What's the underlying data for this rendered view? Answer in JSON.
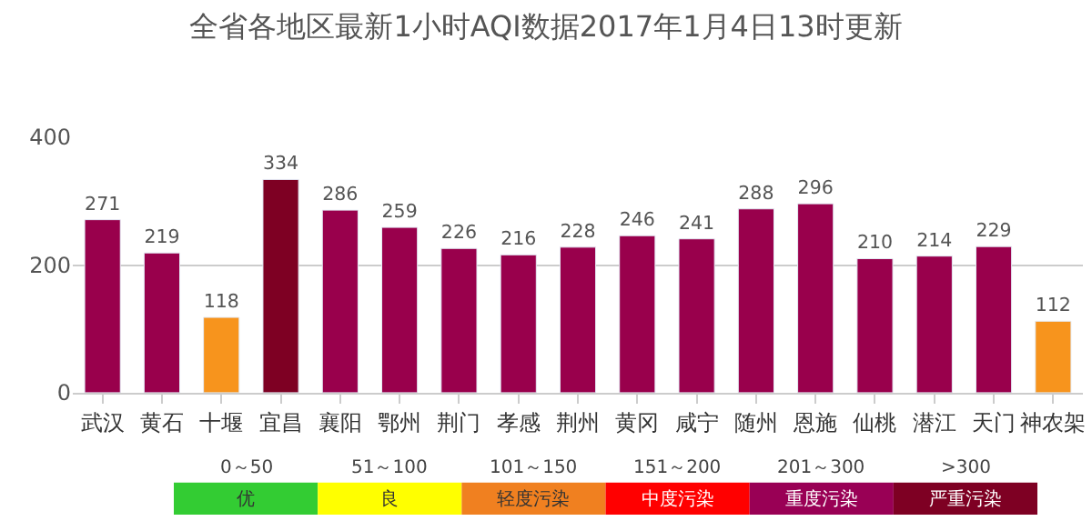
{
  "chart_data": [
    {
      "type": "bar",
      "title": "全省各地区最新1小时AQI数据2017年1月4日13时更新",
      "categories": [
        "武汉",
        "黄石",
        "十堰",
        "宜昌",
        "襄阳",
        "鄂州",
        "荆门",
        "孝感",
        "荆州",
        "黄冈",
        "咸宁",
        "随州",
        "恩施",
        "仙桃",
        "潜江",
        "天门",
        "神农架"
      ],
      "values": [
        271,
        219,
        118,
        334,
        286,
        259,
        226,
        216,
        228,
        246,
        241,
        288,
        296,
        210,
        214,
        229,
        112
      ],
      "colors": [
        "#99004c",
        "#99004c",
        "#f7941d",
        "#7e0023",
        "#99004c",
        "#99004c",
        "#99004c",
        "#99004c",
        "#99004c",
        "#99004c",
        "#99004c",
        "#99004c",
        "#99004c",
        "#99004c",
        "#99004c",
        "#99004c",
        "#f7941d"
      ],
      "ylim": [
        0,
        400
      ],
      "yticks": [
        0,
        200,
        400
      ],
      "grid": "y",
      "data_labels": true
    },
    {
      "type": "other",
      "categories": [
        "优",
        "良",
        "轻度污染",
        "中度污染",
        "重度污染",
        "严重污染"
      ],
      "annotations": [
        "0～50",
        "51～100",
        "101～150",
        "151～200",
        "201～300",
        ">300"
      ],
      "colors": [
        "#33cc33",
        "#ffff00",
        "#f08020",
        "#ff0000",
        "#990055",
        "#7e0023"
      ]
    }
  ]
}
